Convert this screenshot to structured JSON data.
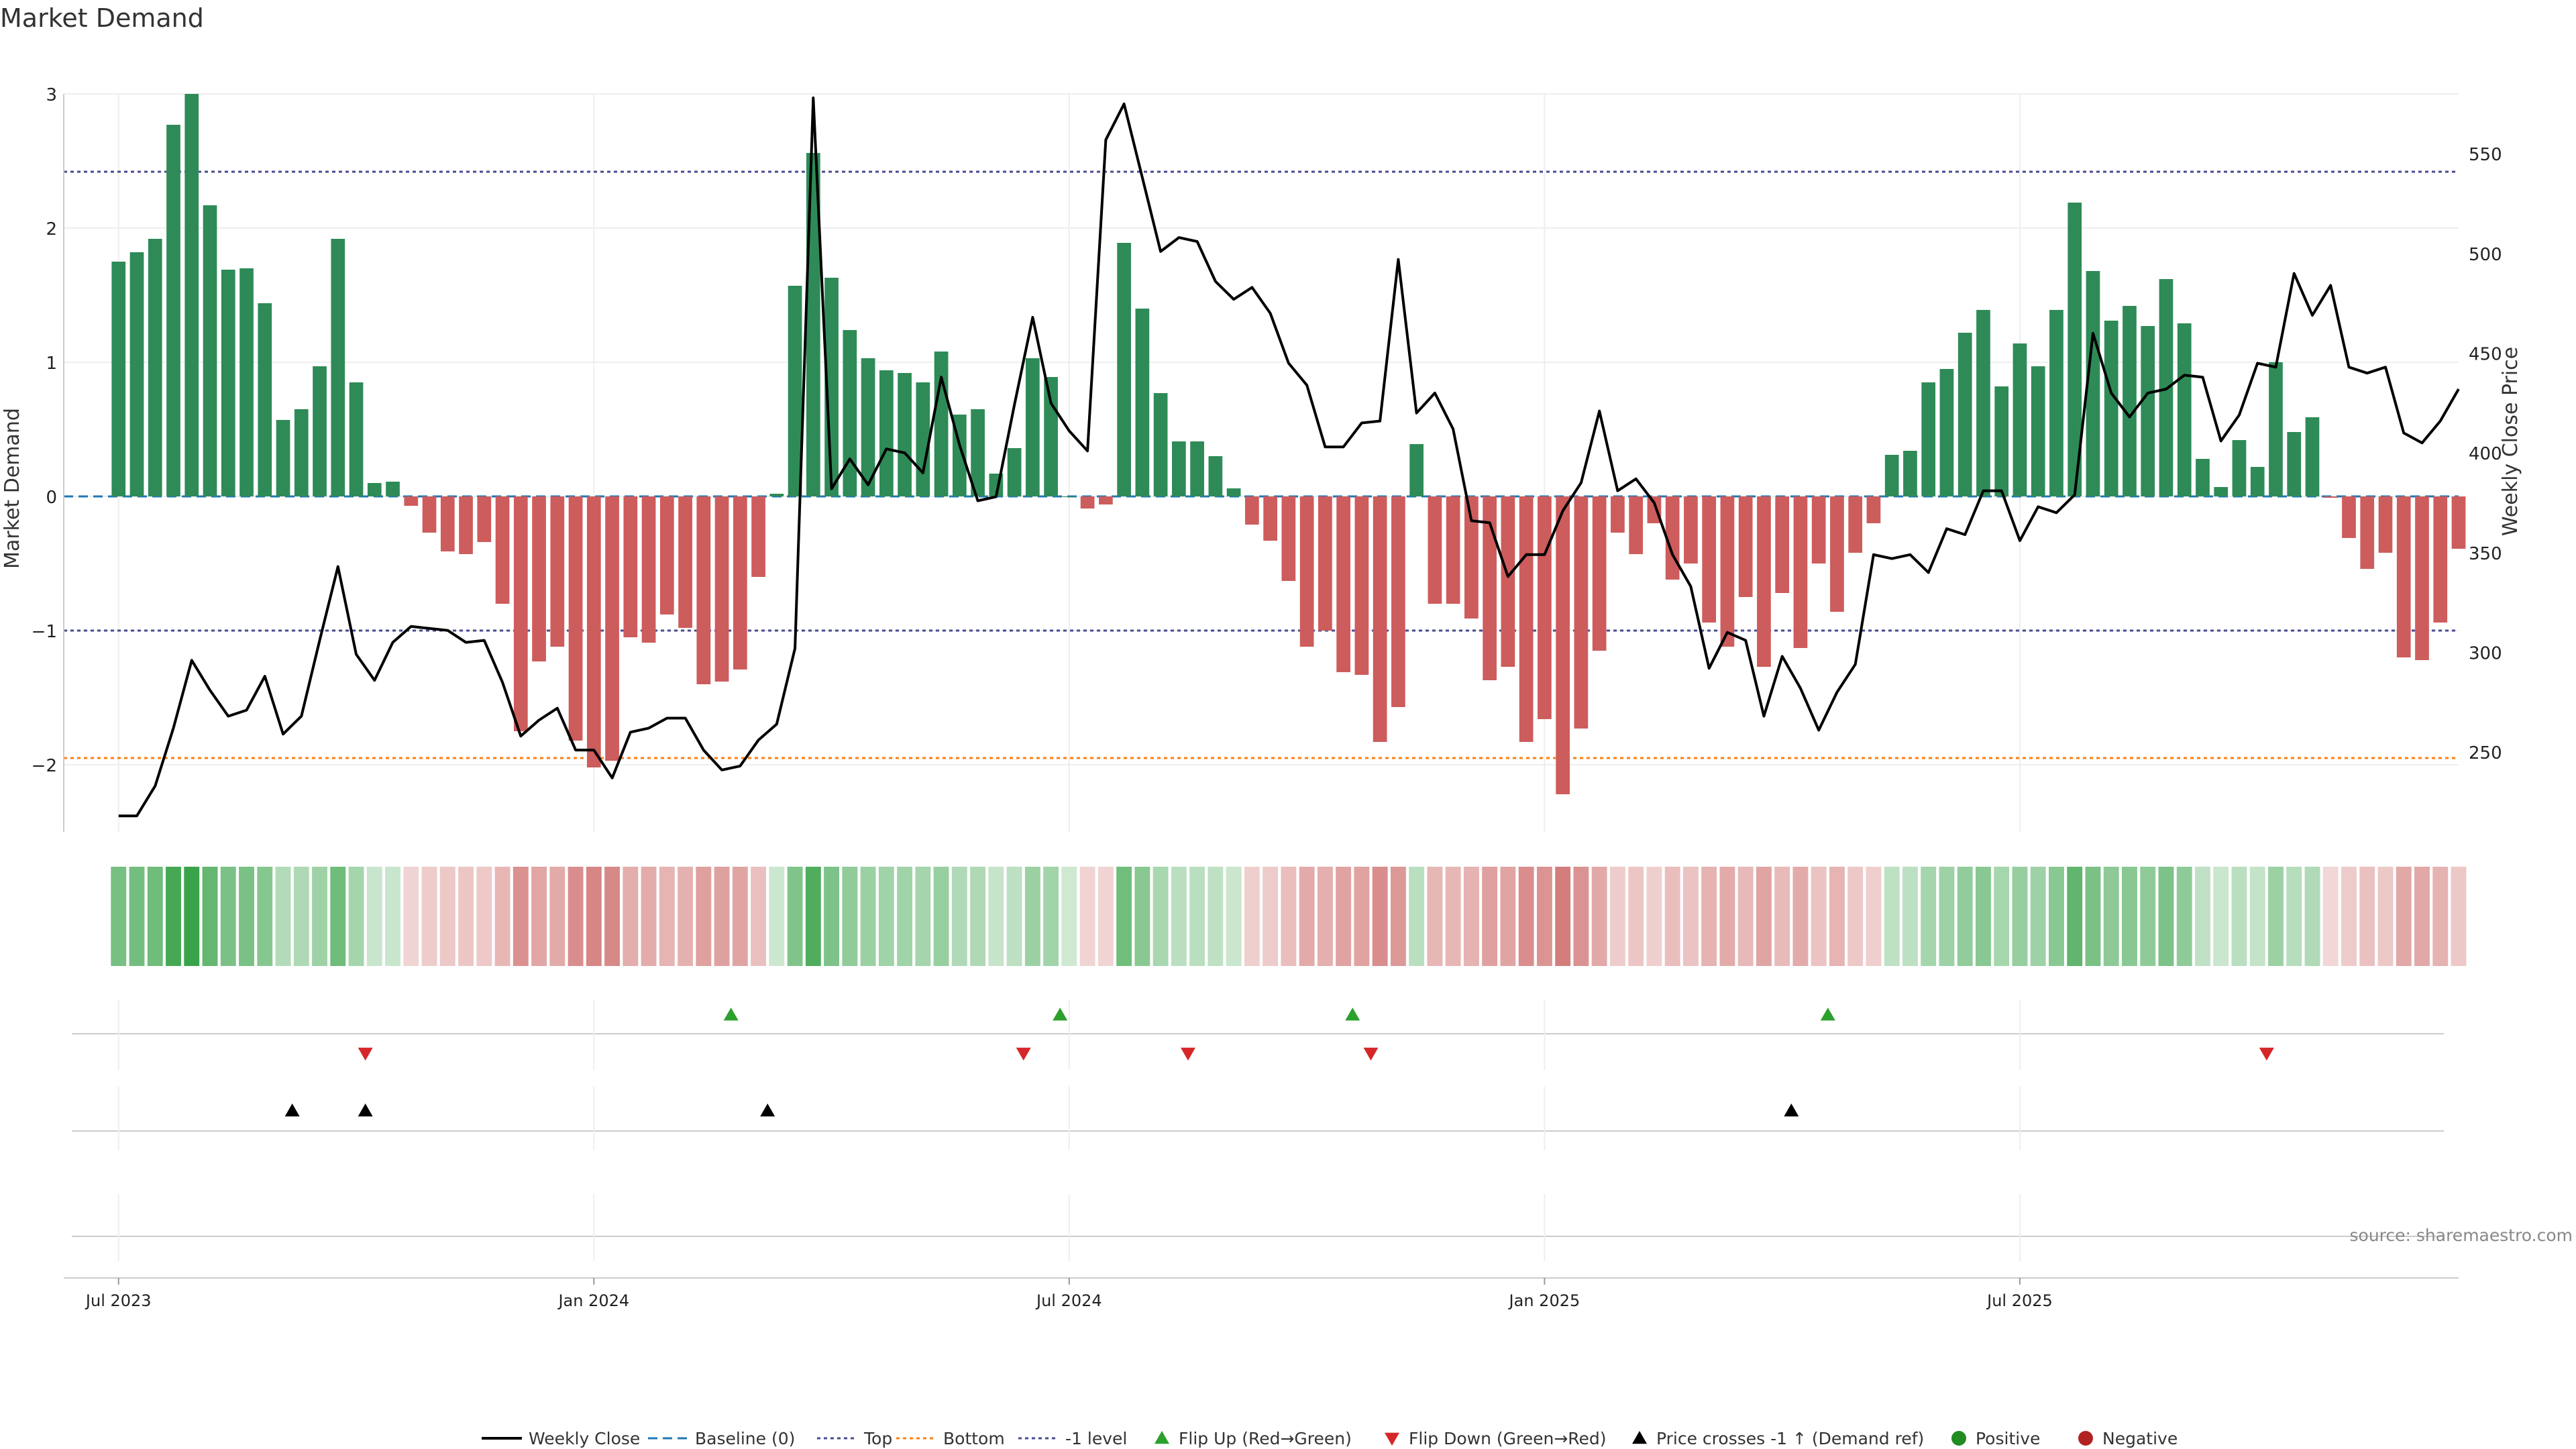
{
  "chart_data": {
    "type": "bar",
    "title": "Market Demand",
    "ylabel": "Market Demand",
    "y2label": "Weekly Close Price",
    "ylim": [
      -2.5,
      3.0
    ],
    "y2lim": [
      210,
      580
    ],
    "yticks": [
      -2,
      -1,
      0,
      1,
      2,
      3
    ],
    "yticklabels": [
      "−2",
      "−1",
      "0",
      "1",
      "2",
      "3"
    ],
    "y2ticks": [
      250,
      300,
      350,
      400,
      450,
      500,
      550
    ],
    "y2ticklabels": [
      "250",
      "300",
      "350",
      "400",
      "450",
      "500",
      "550"
    ],
    "x_range": [
      -3,
      128
    ],
    "x_ticks": [
      {
        "week": 0,
        "label": "Jul 2023"
      },
      {
        "week": 26,
        "label": "Jan 2024"
      },
      {
        "week": 52,
        "label": "Jul 2024"
      },
      {
        "week": 78,
        "label": "Jan 2025"
      },
      {
        "week": 104,
        "label": "Jul 2025"
      }
    ],
    "reference_lines": {
      "top": 2.42,
      "bottom": -1.95,
      "minus_one": -1.0,
      "baseline": 0
    },
    "series": [
      {
        "name": "Market Demand",
        "kind": "bar",
        "values": [
          1.75,
          1.82,
          1.92,
          2.77,
          3.0,
          2.17,
          1.69,
          1.7,
          1.44,
          0.57,
          0.65,
          0.97,
          1.92,
          0.85,
          0.1,
          0.11,
          -0.07,
          -0.27,
          -0.41,
          -0.43,
          -0.34,
          -0.8,
          -1.75,
          -1.23,
          -1.12,
          -1.82,
          -2.02,
          -1.97,
          -1.05,
          -1.09,
          -0.88,
          -0.98,
          -1.4,
          -1.38,
          -1.29,
          -0.6,
          0.02,
          1.57,
          2.56,
          1.63,
          1.24,
          1.03,
          0.94,
          0.92,
          0.85,
          1.08,
          0.61,
          0.65,
          0.17,
          0.36,
          1.03,
          0.89,
          0.0,
          -0.09,
          -0.06,
          1.89,
          1.4,
          0.77,
          0.41,
          0.41,
          0.3,
          0.06,
          -0.21,
          -0.33,
          -0.63,
          -1.12,
          -1.0,
          -1.31,
          -1.33,
          -1.83,
          -1.57,
          0.39,
          -0.8,
          -0.8,
          -0.91,
          -1.37,
          -1.27,
          -1.83,
          -1.66,
          -2.22,
          -1.73,
          -1.15,
          -0.27,
          -0.43,
          -0.2,
          -0.62,
          -0.5,
          -0.94,
          -1.12,
          -0.75,
          -1.27,
          -0.72,
          -1.13,
          -0.5,
          -0.86,
          -0.42,
          -0.2,
          0.31,
          0.34,
          0.85,
          0.95,
          1.22,
          1.39,
          0.82,
          1.14,
          0.97,
          1.39,
          2.19,
          1.68,
          1.31,
          1.42,
          1.27,
          1.62,
          1.29,
          0.28,
          0.07,
          0.42,
          0.22,
          1.0,
          0.48,
          0.59,
          -0.01,
          -0.31,
          -0.54,
          -0.42,
          -1.2,
          -1.22,
          -0.94,
          -0.39
        ]
      },
      {
        "name": "Weekly Close",
        "kind": "line",
        "axis": "right",
        "values": [
          218,
          218,
          233,
          262,
          296,
          281,
          268,
          271,
          288,
          259,
          268,
          306,
          343,
          299,
          286,
          305,
          313,
          312,
          311,
          305,
          306,
          285,
          258,
          266,
          272,
          251,
          251,
          237,
          260,
          262,
          267,
          267,
          251,
          241,
          243,
          256,
          264,
          302,
          578,
          382,
          397,
          384,
          402,
          400,
          390,
          438,
          404,
          376,
          378,
          424,
          468,
          425,
          411,
          401,
          557,
          575,
          538,
          501,
          508,
          506,
          486,
          477,
          483,
          470,
          445,
          434,
          403,
          403,
          415,
          416,
          497,
          420,
          430,
          412,
          366,
          365,
          338,
          349,
          349,
          371,
          385,
          421,
          381,
          387,
          375,
          349,
          333,
          292,
          310,
          306,
          268,
          298,
          282,
          261,
          280,
          294,
          349,
          347,
          349,
          340,
          362,
          359,
          381,
          381,
          356,
          373,
          370,
          379,
          460,
          430,
          418,
          430,
          432,
          439,
          438,
          406,
          419,
          445,
          443,
          490,
          469,
          484,
          443,
          440,
          443,
          410,
          405,
          416,
          432
        ]
      }
    ]
  },
  "ribbon": {
    "values": [
      1.75,
      1.82,
      1.92,
      2.77,
      3.0,
      2.17,
      1.69,
      1.7,
      1.44,
      0.57,
      0.65,
      0.97,
      1.92,
      0.85,
      0.1,
      0.11,
      -0.07,
      -0.27,
      -0.41,
      -0.43,
      -0.34,
      -0.8,
      -1.75,
      -1.23,
      -1.12,
      -1.82,
      -2.02,
      -1.97,
      -1.05,
      -1.09,
      -0.88,
      -0.98,
      -1.4,
      -1.38,
      -1.29,
      -0.6,
      0.02,
      1.57,
      2.56,
      1.63,
      1.24,
      1.03,
      0.94,
      0.92,
      0.85,
      1.08,
      0.61,
      0.65,
      0.17,
      0.36,
      1.03,
      0.89,
      0.0,
      -0.09,
      -0.06,
      1.89,
      1.4,
      0.77,
      0.41,
      0.41,
      0.3,
      0.06,
      -0.21,
      -0.33,
      -0.63,
      -1.12,
      -1.0,
      -1.31,
      -1.33,
      -1.83,
      -1.57,
      0.39,
      -0.8,
      -0.8,
      -0.91,
      -1.37,
      -1.27,
      -1.83,
      -1.66,
      -2.22,
      -1.73,
      -1.15,
      -0.27,
      -0.43,
      -0.2,
      -0.62,
      -0.5,
      -0.94,
      -1.12,
      -0.75,
      -1.27,
      -0.72,
      -1.13,
      -0.5,
      -0.86,
      -0.42,
      -0.2,
      0.31,
      0.34,
      0.85,
      0.95,
      1.22,
      1.39,
      0.82,
      1.14,
      0.97,
      1.39,
      2.19,
      1.68,
      1.31,
      1.42,
      1.27,
      1.62,
      1.29,
      0.28,
      0.07,
      0.42,
      0.22,
      1.0,
      0.48,
      0.59,
      -0.01,
      -0.31,
      -0.54,
      -0.42,
      -1.2,
      -1.22,
      -0.94,
      -0.39
    ]
  },
  "events": {
    "flip_up_weeks": [
      33.5,
      51.5,
      67.5,
      93.5
    ],
    "flip_down_weeks": [
      13.5,
      49.5,
      58.5,
      68.5,
      117.5
    ],
    "price_cross_weeks": [
      9.5,
      13.5,
      35.5,
      91.5
    ]
  },
  "legend": [
    {
      "key": "weekly-close",
      "label": "Weekly Close",
      "style": "line",
      "color": "#000000"
    },
    {
      "key": "baseline",
      "label": "Baseline (0)",
      "style": "dashed",
      "color": "#1f77b4"
    },
    {
      "key": "top",
      "label": "Top",
      "style": "dotted",
      "color": "#4a4a90"
    },
    {
      "key": "bottom",
      "label": "Bottom",
      "style": "dotted",
      "color": "#ff7f0e"
    },
    {
      "key": "minus-one",
      "label": "-1 level",
      "style": "dotted",
      "color": "#4a4a90"
    },
    {
      "key": "flip-up",
      "label": "Flip Up (Red→Green)",
      "style": "tri-up",
      "color": "#2ca02c"
    },
    {
      "key": "flip-down",
      "label": "Flip Down (Green→Red)",
      "style": "tri-down",
      "color": "#d62728"
    },
    {
      "key": "price-cross",
      "label": "Price crosses -1 ↑ (Demand ref)",
      "style": "tri-up",
      "color": "#000000"
    },
    {
      "key": "positive",
      "label": "Positive",
      "style": "dot",
      "color": "#228b22"
    },
    {
      "key": "negative",
      "label": "Negative",
      "style": "dot",
      "color": "#b22222"
    }
  ],
  "source_note": "source: sharemaestro.com",
  "colors": {
    "positive_bar": "#2e8b57",
    "negative_bar": "#cd5c5c",
    "price_line": "#000000",
    "ribbon_pos": "#3aa34a",
    "ribbon_neg": "#c9605e",
    "event_up": "#2ca02c",
    "event_down": "#d62728",
    "grid": "#eeeeee"
  }
}
